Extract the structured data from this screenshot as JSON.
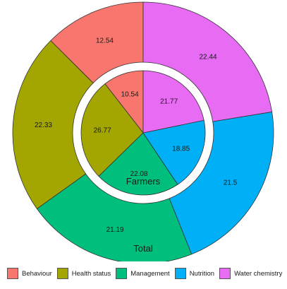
{
  "chart_data": {
    "type": "pie",
    "variant": "nested-donut",
    "categories": [
      "Behaviour",
      "Health status",
      "Management",
      "Nutrition",
      "Water chemistry"
    ],
    "colors": {
      "Behaviour": "#F8766D",
      "Health status": "#A3A500",
      "Management": "#00BF7D",
      "Nutrition": "#00B0F6",
      "Water chemistry": "#E76BF3"
    },
    "series": [
      {
        "name": "Total",
        "ring": "outer",
        "values": [
          12.54,
          22.33,
          21.19,
          21.5,
          22.44
        ]
      },
      {
        "name": "Farmers",
        "ring": "inner",
        "values": [
          10.54,
          26.77,
          22.08,
          18.85,
          21.77
        ]
      }
    ],
    "legend_position": "bottom",
    "value_labels": true
  },
  "legend": {
    "items": [
      {
        "label": "Behaviour",
        "color": "#F8766D"
      },
      {
        "label": "Health status",
        "color": "#A3A500"
      },
      {
        "label": "Management",
        "color": "#00BF7D"
      },
      {
        "label": "Nutrition",
        "color": "#00B0F6"
      },
      {
        "label": "Water chemistry",
        "color": "#E76BF3"
      }
    ]
  }
}
